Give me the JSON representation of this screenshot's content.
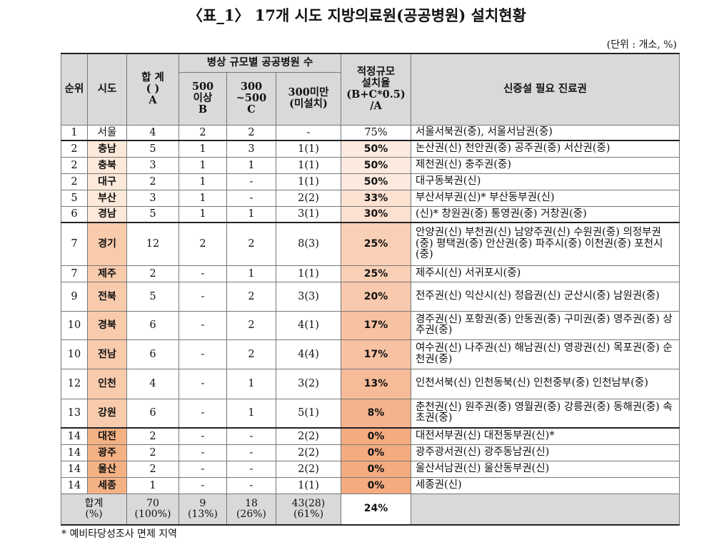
{
  "title": "〈표_1〉 17개 시도 지방의료원(공공병원) 설치현황",
  "unit": "(단위 : 개소, %)",
  "table": {
    "header": {
      "rank": "순위",
      "sido": "시도",
      "total": "합 계\n(   )\nA",
      "group": "병상 규모별 공공병원 수",
      "over500": "500\n이상\nB",
      "mid": "300\n~500\nC",
      "under300": "300미만\n(미설치)",
      "rate": "적정규모\n설치율\n(B+C*0.5)\n/A",
      "regions": "신증설 필요 진료권"
    },
    "rows": [
      [
        "1",
        "서울",
        "4",
        "2",
        "2",
        "-",
        "75%",
        "서울서북권(중), 서울서남권(중)"
      ],
      [
        "2",
        "충남",
        "5",
        "1",
        "3",
        "1(1)",
        "50%",
        "논산권(신) 천안권(중) 공주권(중) 서산권(중)"
      ],
      [
        "2",
        "충북",
        "3",
        "1",
        "1",
        "1(1)",
        "50%",
        "제천권(신) 충주권(중)"
      ],
      [
        "2",
        "대구",
        "2",
        "1",
        "-",
        "1(1)",
        "50%",
        "대구동북권(신)"
      ],
      [
        "5",
        "부산",
        "3",
        "1",
        "-",
        "2(2)",
        "33%",
        "부산서부권(신)* 부산동부권(신)"
      ],
      [
        "6",
        "경남",
        "5",
        "1",
        "1",
        "3(1)",
        "30%",
        "(신)* 창원권(중) 통영권(중) 거창권(중)"
      ],
      [
        "7",
        "경기",
        "12",
        "2",
        "2",
        "8(3)",
        "25%",
        "안양권(신) 부천권(신) 남양주권(신) 수원권(중) 의정부권(중) 평택권(중) 안산권(중) 파주시(중) 이천권(중) 포천시(중)"
      ],
      [
        "7",
        "제주",
        "2",
        "-",
        "1",
        "1(1)",
        "25%",
        "제주시(신) 서귀포시(중)"
      ],
      [
        "9",
        "전북",
        "5",
        "-",
        "2",
        "3(3)",
        "20%",
        "전주권(신) 익산시(신) 정읍권(신) 군산시(중) 남원권(중)"
      ],
      [
        "10",
        "경북",
        "6",
        "-",
        "2",
        "4(1)",
        "17%",
        "경주권(신) 포항권(중) 안동권(중) 구미권(중) 영주권(중) 상주권(중)"
      ],
      [
        "10",
        "전남",
        "6",
        "-",
        "2",
        "4(4)",
        "17%",
        "여수권(신) 나주권(신) 해남권(신) 영광권(신) 목포권(중) 순천권(중)"
      ],
      [
        "12",
        "인천",
        "4",
        "-",
        "1",
        "3(2)",
        "13%",
        "인천서북(신) 인천동북(신) 인천중부(중) 인천남부(중)"
      ],
      [
        "13",
        "강원",
        "6",
        "-",
        "1",
        "5(1)",
        "8%",
        "춘천권(신) 원주권(중) 영월권(중) 강릉권(중) 동해권(중) 속초권(중)"
      ],
      [
        "14",
        "대전",
        "2",
        "-",
        "-",
        "2(2)",
        "0%",
        "대전서부권(신) 대전동부권(신)*"
      ],
      [
        "14",
        "광주",
        "2",
        "-",
        "-",
        "2(2)",
        "0%",
        "광주광서권(신) 광주동남권(신)"
      ],
      [
        "14",
        "울산",
        "2",
        "-",
        "-",
        "2(2)",
        "0%",
        "울산서남권(신) 울산동부권(신)"
      ],
      [
        "14",
        "세종",
        "1",
        "-",
        "-",
        "1(1)",
        "0%",
        "세종권(신)"
      ]
    ],
    "footer": [
      "합계\n(%)",
      "70\n(100%)",
      "9\n(13%)",
      "18\n(26%)",
      "43(28)\n(61%)",
      "24%"
    ]
  },
  "note": "* 예비타당성조사 면제 지역"
}
